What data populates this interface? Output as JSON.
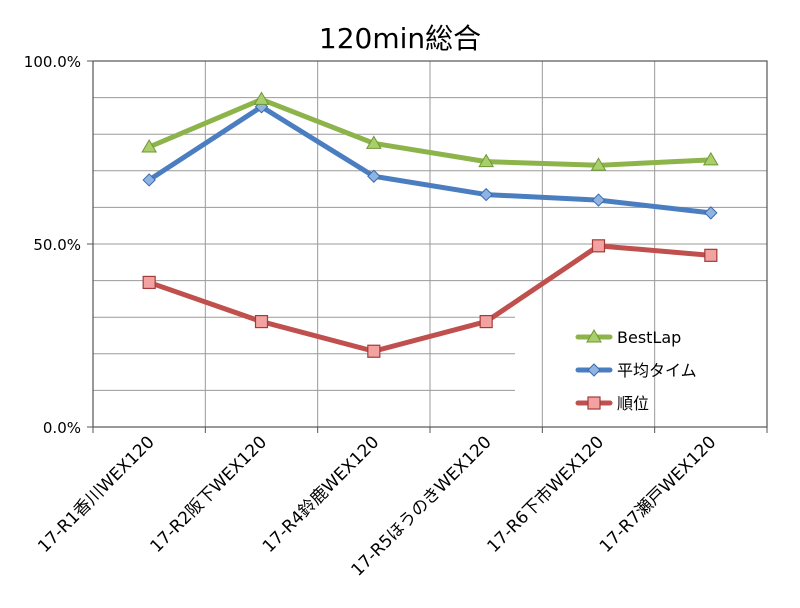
{
  "chart_data": {
    "type": "line",
    "title": "120min総合",
    "xlabel": "",
    "ylabel": "",
    "categories": [
      "17-R1香川WEX120",
      "17-R2阪下WEX120",
      "17-R4鈴鹿WEX120",
      "17-R5ほうのきWEX120",
      "17-R6下市WEX120",
      "17-R7瀬戸WEX120"
    ],
    "ylim": [
      0,
      100
    ],
    "yticks": [
      "0.0%",
      "50.0%",
      "100.0%"
    ],
    "grid": true,
    "legend_position": "right",
    "series": [
      {
        "name": "BestLap",
        "values": [
          76.5,
          89.5,
          77.5,
          72.5,
          71.5,
          73.0
        ],
        "color": "#8db44b",
        "marker": "triangle"
      },
      {
        "name": "平均タイム",
        "values": [
          67.5,
          87.5,
          68.5,
          63.5,
          62.0,
          58.5
        ],
        "color": "#4a7ec1",
        "marker": "diamond"
      },
      {
        "name": "順位",
        "values": [
          39.5,
          28.8,
          20.7,
          28.8,
          49.5,
          46.9
        ],
        "color": "#c0504d",
        "marker": "square"
      }
    ]
  }
}
